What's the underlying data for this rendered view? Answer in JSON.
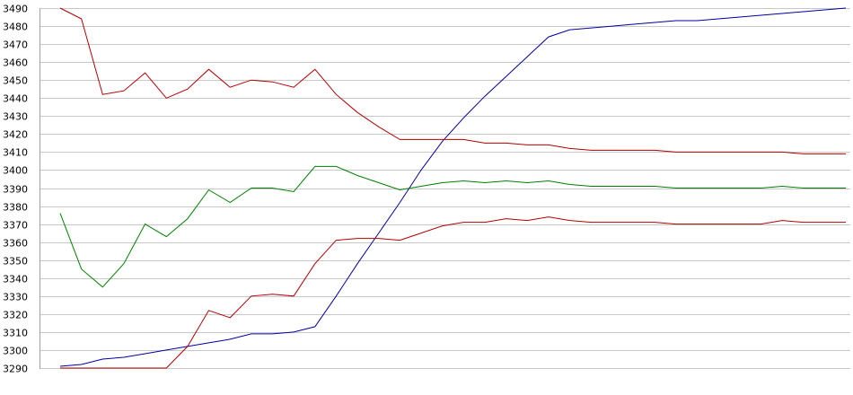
{
  "chart_data": {
    "type": "line",
    "title": "",
    "xlabel": "",
    "ylabel": "",
    "ylim": [
      3290,
      3490
    ],
    "y_ticks": [
      3490,
      3480,
      3470,
      3460,
      3450,
      3440,
      3430,
      3420,
      3410,
      3400,
      3390,
      3380,
      3370,
      3360,
      3350,
      3340,
      3330,
      3320,
      3310,
      3300,
      3290
    ],
    "grid": true,
    "legend": "none",
    "x": [
      1,
      2,
      3,
      4,
      5,
      6,
      7,
      8,
      9,
      10,
      11,
      12,
      13,
      14,
      15,
      16,
      17,
      18,
      19,
      20,
      21,
      22,
      23,
      24,
      25,
      26,
      27,
      28,
      29,
      30,
      31,
      32,
      33,
      34,
      35,
      36,
      37,
      38
    ],
    "series": [
      {
        "color": "#0000a0",
        "values": [
          3291,
          3292,
          3295,
          3296,
          3298,
          3300,
          3302,
          3304,
          3306,
          3309,
          3309,
          3310,
          3313,
          3330,
          3348,
          3365,
          3382,
          3400,
          3416,
          3429,
          3441,
          3452,
          3463,
          3474,
          3478,
          3479,
          3480,
          3481,
          3482,
          3483,
          3483,
          3484,
          3485,
          3486,
          3487,
          3488,
          3489,
          3490
        ]
      },
      {
        "color": "#b00000",
        "values": [
          3490,
          3484,
          3442,
          3444,
          3454,
          3440,
          3445,
          3456,
          3446,
          3450,
          3449,
          3446,
          3456,
          3442,
          3432,
          3424,
          3417,
          3417,
          3417,
          3417,
          3415,
          3415,
          3414,
          3414,
          3412,
          3411,
          3411,
          3411,
          3411,
          3410,
          3410,
          3410,
          3410,
          3410,
          3410,
          3409,
          3409,
          3409
        ]
      },
      {
        "color": "#008000",
        "values": [
          3376,
          3345,
          3335,
          3348,
          3370,
          3363,
          3373,
          3389,
          3382,
          3390,
          3390,
          3388,
          3402,
          3402,
          3397,
          3393,
          3389,
          3391,
          3393,
          3394,
          3393,
          3394,
          3393,
          3394,
          3392,
          3391,
          3391,
          3391,
          3391,
          3390,
          3390,
          3390,
          3390,
          3390,
          3391,
          3390,
          3390,
          3390
        ]
      },
      {
        "color": "#b00000",
        "values": [
          3290,
          3290,
          3290,
          3290,
          3290,
          3290,
          3302,
          3322,
          3318,
          3330,
          3331,
          3330,
          3348,
          3361,
          3362,
          3362,
          3361,
          3365,
          3369,
          3371,
          3371,
          3373,
          3372,
          3374,
          3372,
          3371,
          3371,
          3371,
          3371,
          3370,
          3370,
          3370,
          3370,
          3370,
          3372,
          3371,
          3371,
          3371
        ]
      }
    ]
  }
}
